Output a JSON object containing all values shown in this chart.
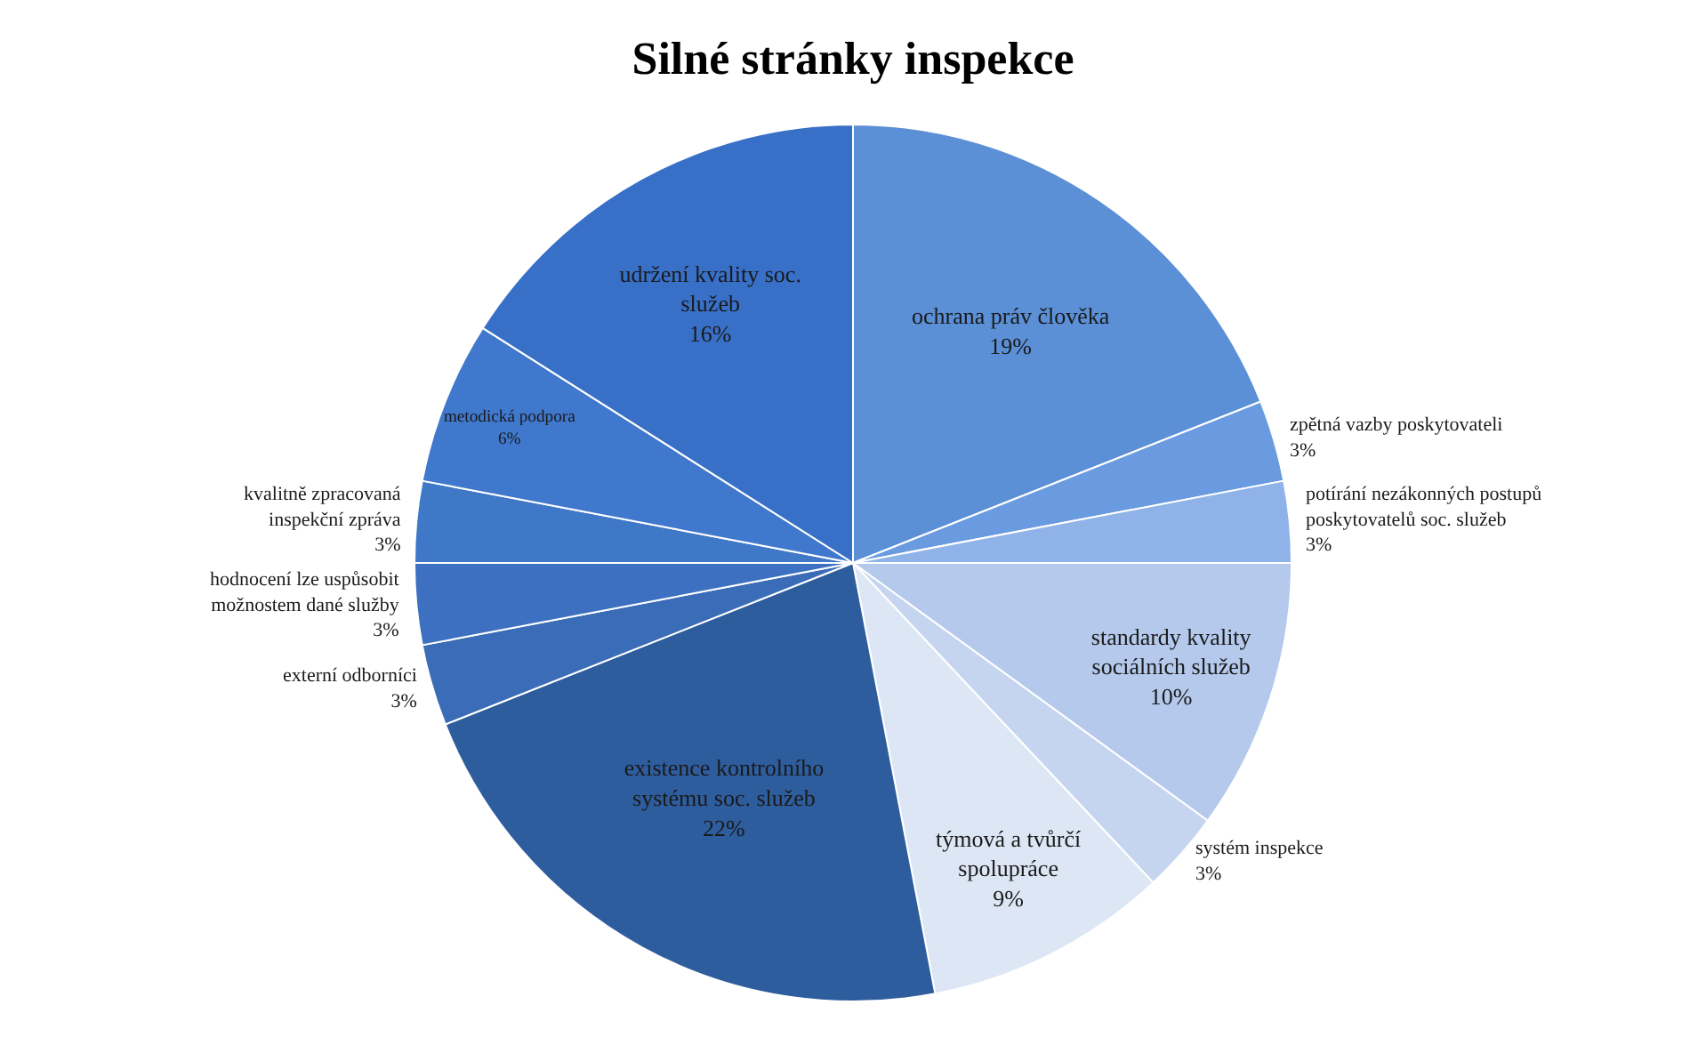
{
  "chart_data": {
    "type": "pie",
    "title": "Silné stránky inspekce",
    "categories": [
      "ochrana práv člověka",
      "zpětná vazby poskytovateli",
      "potírání nezákonných postupů poskytovatelů soc. služeb",
      "standardy kvality sociálních služeb",
      "systém inspekce",
      "týmová a tvůrčí spolupráce",
      "existence kontrolního systému soc. služeb",
      "externí odborníci",
      "hodnocení lze uspůsobit možnostem dané služby",
      "kvalitně zpracovaná inspekční zpráva",
      "metodická podpora",
      "udržení kvality soc. služeb"
    ],
    "values": [
      19,
      3,
      3,
      10,
      3,
      9,
      22,
      3,
      3,
      3,
      6,
      16
    ],
    "value_labels": [
      "19%",
      "3%",
      "3%",
      "10%",
      "3%",
      "9%",
      "22%",
      "3%",
      "3%",
      "3%",
      "6%",
      "16%"
    ],
    "colors": [
      "#5b8fd6",
      "#6a9be0",
      "#8fb3e8",
      "#b4c9ec",
      "#c6d5ef",
      "#dde6f4",
      "#2e5d9e",
      "#3a6cb8",
      "#3d70c0",
      "#4078c8",
      "#3f78cc",
      "#3870c8"
    ],
    "legend": false
  }
}
